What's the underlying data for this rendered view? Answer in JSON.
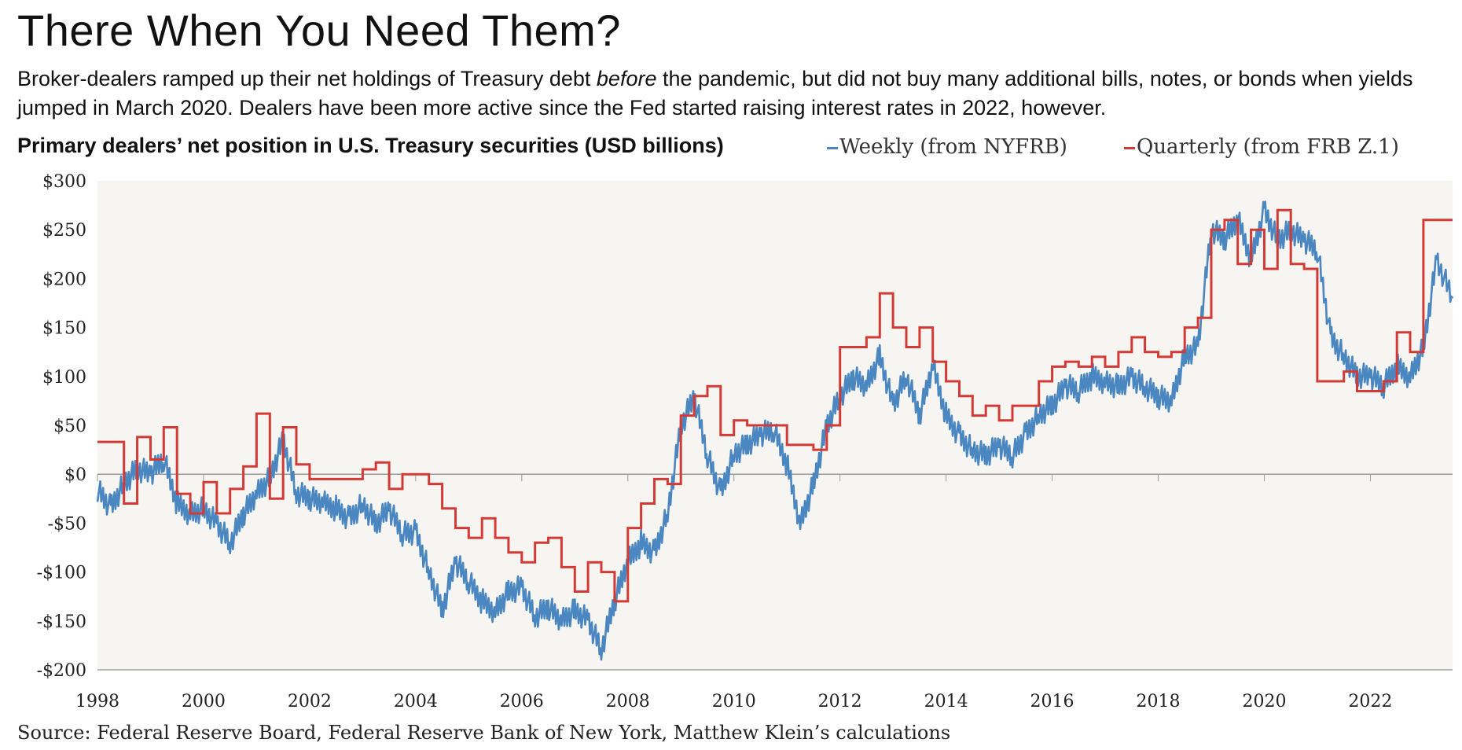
{
  "header": {
    "title": "There When You Need Them?",
    "subtitle_a": "Broker-dealers ramped up their net holdings of Treasury debt ",
    "subtitle_em": "before",
    "subtitle_b": " the pandemic, but did not buy many additional bills, notes, or bonds when yields jumped in March 2020. Dealers have been more active since the Fed started raising interest rates in 2022, however."
  },
  "footer": {
    "source": "Source: Federal Reserve Board, Federal Reserve Bank of New York, Matthew Klein’s calculations"
  },
  "colors": {
    "weekly": "#4a86c0",
    "quarterly": "#d43a35",
    "plot_bg": "#f7f5f1",
    "zero_line": "#9a9a9a"
  },
  "chart_data": {
    "type": "line",
    "title": "Primary dealers’ net position in U.S. Treasury securities (USD billions)",
    "xlim": [
      1998,
      2023.55
    ],
    "ylim": [
      -200,
      300
    ],
    "x_ticks": [
      1998,
      2000,
      2002,
      2004,
      2006,
      2008,
      2010,
      2012,
      2014,
      2016,
      2018,
      2020,
      2022
    ],
    "x_tick_labels": [
      "1998",
      "2000",
      "2002",
      "2004",
      "2006",
      "2008",
      "2010",
      "2012",
      "2014",
      "2016",
      "2018",
      "2020",
      "2022"
    ],
    "y_ticks": [
      300,
      250,
      200,
      150,
      100,
      50,
      0,
      -50,
      -100,
      -150,
      -200
    ],
    "y_tick_labels": [
      "$300",
      "$250",
      "$200",
      "$150",
      "$100",
      "$50",
      "$0",
      "-$50",
      "-$100",
      "-$150",
      "-$200"
    ],
    "grid": false,
    "legend_position": "top-right",
    "series": [
      {
        "name": "Weekly (from NYFRB)",
        "style": "line",
        "x": [
          1998.0,
          1998.25,
          1998.5,
          1998.75,
          1999.0,
          1999.25,
          1999.5,
          1999.75,
          2000.0,
          2000.25,
          2000.5,
          2000.75,
          2001.0,
          2001.25,
          2001.5,
          2001.75,
          2002.0,
          2002.25,
          2002.5,
          2002.75,
          2003.0,
          2003.25,
          2003.5,
          2003.75,
          2004.0,
          2004.25,
          2004.5,
          2004.75,
          2005.0,
          2005.25,
          2005.5,
          2005.75,
          2006.0,
          2006.25,
          2006.5,
          2006.75,
          2007.0,
          2007.25,
          2007.5,
          2007.75,
          2008.0,
          2008.25,
          2008.5,
          2008.75,
          2009.0,
          2009.25,
          2009.5,
          2009.75,
          2010.0,
          2010.25,
          2010.5,
          2010.75,
          2011.0,
          2011.25,
          2011.5,
          2011.75,
          2012.0,
          2012.25,
          2012.5,
          2012.75,
          2013.0,
          2013.25,
          2013.5,
          2013.75,
          2014.0,
          2014.25,
          2014.5,
          2014.75,
          2015.0,
          2015.25,
          2015.5,
          2015.75,
          2016.0,
          2016.25,
          2016.5,
          2016.75,
          2017.0,
          2017.25,
          2017.5,
          2017.75,
          2018.0,
          2018.25,
          2018.5,
          2018.75,
          2019.0,
          2019.25,
          2019.5,
          2019.75,
          2020.0,
          2020.25,
          2020.5,
          2020.75,
          2021.0,
          2021.25,
          2021.5,
          2021.75,
          2022.0,
          2022.25,
          2022.5,
          2022.75,
          2023.0,
          2023.25,
          2023.55
        ],
        "values": [
          -15,
          -35,
          -10,
          5,
          0,
          15,
          -30,
          -40,
          -35,
          -50,
          -70,
          -40,
          -20,
          -5,
          35,
          -20,
          -25,
          -30,
          -35,
          -45,
          -30,
          -50,
          -35,
          -60,
          -60,
          -100,
          -140,
          -90,
          -110,
          -130,
          -140,
          -120,
          -115,
          -145,
          -135,
          -150,
          -140,
          -150,
          -180,
          -130,
          -90,
          -70,
          -80,
          -40,
          50,
          80,
          20,
          -20,
          20,
          30,
          40,
          45,
          10,
          -50,
          -10,
          50,
          80,
          100,
          90,
          120,
          70,
          100,
          60,
          110,
          60,
          40,
          25,
          20,
          30,
          20,
          40,
          60,
          70,
          90,
          85,
          100,
          95,
          90,
          100,
          90,
          80,
          75,
          120,
          130,
          250,
          240,
          260,
          220,
          270,
          240,
          250,
          240,
          230,
          140,
          120,
          100,
          100,
          90,
          110,
          100,
          130,
          220,
          180
        ]
      },
      {
        "name": "Quarterly (from FRB Z.1)",
        "style": "step",
        "x": [
          1998.0,
          1998.5,
          1998.75,
          1999.0,
          1999.25,
          1999.5,
          1999.75,
          2000.0,
          2000.25,
          2000.5,
          2000.75,
          2001.0,
          2001.25,
          2001.5,
          2001.75,
          2002.0,
          2002.25,
          2002.5,
          2002.75,
          2003.0,
          2003.25,
          2003.5,
          2003.75,
          2004.0,
          2004.25,
          2004.5,
          2004.75,
          2005.0,
          2005.25,
          2005.5,
          2005.75,
          2006.0,
          2006.25,
          2006.5,
          2006.75,
          2007.0,
          2007.25,
          2007.5,
          2007.75,
          2008.0,
          2008.25,
          2008.5,
          2008.75,
          2009.0,
          2009.25,
          2009.5,
          2009.75,
          2010.0,
          2010.25,
          2010.5,
          2010.75,
          2011.0,
          2011.25,
          2011.5,
          2011.75,
          2012.0,
          2012.25,
          2012.5,
          2012.75,
          2013.0,
          2013.25,
          2013.5,
          2013.75,
          2014.0,
          2014.25,
          2014.5,
          2014.75,
          2015.0,
          2015.25,
          2015.5,
          2015.75,
          2016.0,
          2016.25,
          2016.5,
          2016.75,
          2017.0,
          2017.25,
          2017.5,
          2017.75,
          2018.0,
          2018.25,
          2018.5,
          2018.75,
          2019.0,
          2019.25,
          2019.5,
          2019.75,
          2020.0,
          2020.25,
          2020.5,
          2020.75,
          2021.0,
          2021.25,
          2021.5,
          2021.75,
          2022.0,
          2022.25,
          2022.5,
          2022.75,
          2023.0,
          2023.25,
          2023.55
        ],
        "values": [
          33,
          -30,
          38,
          15,
          48,
          -20,
          -40,
          -8,
          -40,
          -15,
          8,
          62,
          -25,
          48,
          10,
          -5,
          -5,
          -5,
          -5,
          5,
          12,
          -15,
          0,
          0,
          -10,
          -35,
          -55,
          -65,
          -45,
          -65,
          -80,
          -90,
          -70,
          -65,
          -95,
          -120,
          -90,
          -100,
          -130,
          -55,
          -30,
          -5,
          -10,
          60,
          80,
          90,
          40,
          55,
          50,
          50,
          50,
          30,
          30,
          25,
          50,
          130,
          130,
          140,
          185,
          150,
          130,
          150,
          115,
          95,
          80,
          60,
          70,
          55,
          70,
          70,
          95,
          110,
          115,
          110,
          120,
          110,
          125,
          140,
          125,
          120,
          125,
          150,
          160,
          250,
          260,
          215,
          250,
          210,
          270,
          215,
          210,
          95,
          95,
          105,
          85,
          85,
          95,
          145,
          125,
          260,
          260,
          260
        ]
      }
    ]
  }
}
